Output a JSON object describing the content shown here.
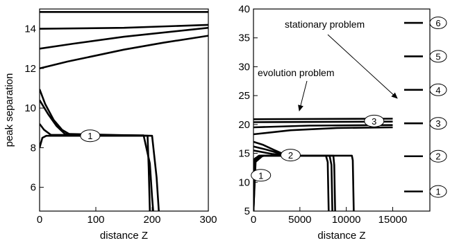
{
  "chart_data": [
    {
      "type": "line",
      "xlabel": "distance Z",
      "ylabel": "peak separation",
      "xlim": [
        0,
        300
      ],
      "ylim": [
        4.8,
        15
      ],
      "xticks": [
        0,
        100,
        200,
        300
      ],
      "yticks": [
        6,
        8,
        10,
        12,
        14
      ],
      "annotations": [
        {
          "text": "1",
          "x": 90,
          "y": 8.6
        }
      ],
      "series": [
        {
          "points": [
            [
              0,
              14.85
            ],
            [
              300,
              14.85
            ]
          ]
        },
        {
          "points": [
            [
              0,
              14.0
            ],
            [
              150,
              14.05
            ],
            [
              300,
              14.2
            ]
          ]
        },
        {
          "points": [
            [
              0,
              13.0
            ],
            [
              60,
              13.25
            ],
            [
              150,
              13.6
            ],
            [
              300,
              14.05
            ]
          ]
        },
        {
          "points": [
            [
              0,
              12.0
            ],
            [
              50,
              12.35
            ],
            [
              100,
              12.65
            ],
            [
              150,
              12.95
            ],
            [
              220,
              13.3
            ],
            [
              300,
              13.65
            ]
          ]
        },
        {
          "points": [
            [
              0,
              10.95
            ],
            [
              10,
              10.2
            ],
            [
              25,
              9.4
            ],
            [
              40,
              8.9
            ],
            [
              55,
              8.65
            ],
            [
              185,
              8.62
            ],
            [
              196,
              7.2
            ],
            [
              200,
              5.5
            ],
            [
              202,
              4.8
            ]
          ]
        },
        {
          "points": [
            [
              0,
              10.4
            ],
            [
              15,
              9.7
            ],
            [
              30,
              9.1
            ],
            [
              45,
              8.7
            ],
            [
              200,
              8.6
            ],
            [
              208,
              6.5
            ],
            [
              212,
              4.8
            ]
          ]
        },
        {
          "points": [
            [
              0,
              9.2
            ],
            [
              8,
              8.9
            ],
            [
              20,
              8.65
            ],
            [
              192,
              8.6
            ],
            [
              194,
              7.0
            ],
            [
              196,
              4.8
            ]
          ]
        },
        {
          "points": [
            [
              0,
              8.0
            ],
            [
              5,
              8.5
            ],
            [
              12,
              8.6
            ],
            [
              185,
              8.6
            ]
          ]
        }
      ]
    },
    {
      "type": "line",
      "xlabel": "distance Z",
      "xlim": [
        0,
        19000
      ],
      "ylim": [
        5,
        40
      ],
      "xticks": [
        0,
        5000,
        10000,
        15000
      ],
      "yticks": [
        5,
        10,
        15,
        20,
        25,
        30,
        35,
        40
      ],
      "annotations": [
        {
          "text": "stationary problem"
        },
        {
          "text": "evolution problem"
        },
        {
          "text": "1",
          "x": 800,
          "y": 11.2
        },
        {
          "text": "2",
          "x": 4000,
          "y": 14.7
        },
        {
          "text": "3",
          "x": 13000,
          "y": 20.6
        }
      ],
      "series": [
        {
          "points": [
            [
              0,
              20.9
            ],
            [
              15000,
              21.0
            ]
          ]
        },
        {
          "points": [
            [
              0,
              20.4
            ],
            [
              15000,
              20.5
            ]
          ]
        },
        {
          "points": [
            [
              0,
              19.5
            ],
            [
              6000,
              19.8
            ],
            [
              15000,
              19.9
            ]
          ]
        },
        {
          "points": [
            [
              0,
              18.3
            ],
            [
              4000,
              19.0
            ],
            [
              9000,
              19.4
            ],
            [
              15000,
              19.5
            ]
          ]
        },
        {
          "points": [
            [
              0,
              17.0
            ],
            [
              1000,
              16.5
            ],
            [
              2200,
              15.6
            ],
            [
              3200,
              14.9
            ],
            [
              4000,
              14.7
            ]
          ]
        },
        {
          "points": [
            [
              0,
              16.2
            ],
            [
              1500,
              15.6
            ],
            [
              2800,
              15.0
            ],
            [
              4000,
              14.7
            ]
          ]
        },
        {
          "points": [
            [
              0,
              15.5
            ],
            [
              2000,
              14.9
            ],
            [
              3500,
              14.7
            ]
          ]
        },
        {
          "points": [
            [
              0,
              5.0
            ],
            [
              100,
              14.0
            ],
            [
              600,
              14.6
            ],
            [
              7800,
              14.6
            ],
            [
              8000,
              13.5
            ],
            [
              8100,
              5.0
            ]
          ]
        },
        {
          "points": [
            [
              0,
              5.0
            ],
            [
              150,
              13.8
            ],
            [
              800,
              14.6
            ],
            [
              8200,
              14.6
            ],
            [
              8400,
              13.0
            ],
            [
              8500,
              5.0
            ]
          ]
        },
        {
          "points": [
            [
              0,
              5.0
            ],
            [
              200,
              13.5
            ],
            [
              1000,
              14.6
            ],
            [
              8600,
              14.6
            ],
            [
              8700,
              13.0
            ],
            [
              8800,
              5.0
            ]
          ]
        },
        {
          "points": [
            [
              0,
              5.0
            ],
            [
              250,
              14.2
            ],
            [
              1200,
              14.6
            ],
            [
              10600,
              14.6
            ],
            [
              10700,
              13.8
            ],
            [
              10800,
              5.0
            ]
          ]
        }
      ],
      "stationary_levels": [
        {
          "label": "1",
          "y": 8.4
        },
        {
          "label": "2",
          "y": 14.5
        },
        {
          "label": "3",
          "y": 20.2
        },
        {
          "label": "4",
          "y": 26.0
        },
        {
          "label": "5",
          "y": 31.8
        },
        {
          "label": "6",
          "y": 37.6
        }
      ]
    }
  ]
}
